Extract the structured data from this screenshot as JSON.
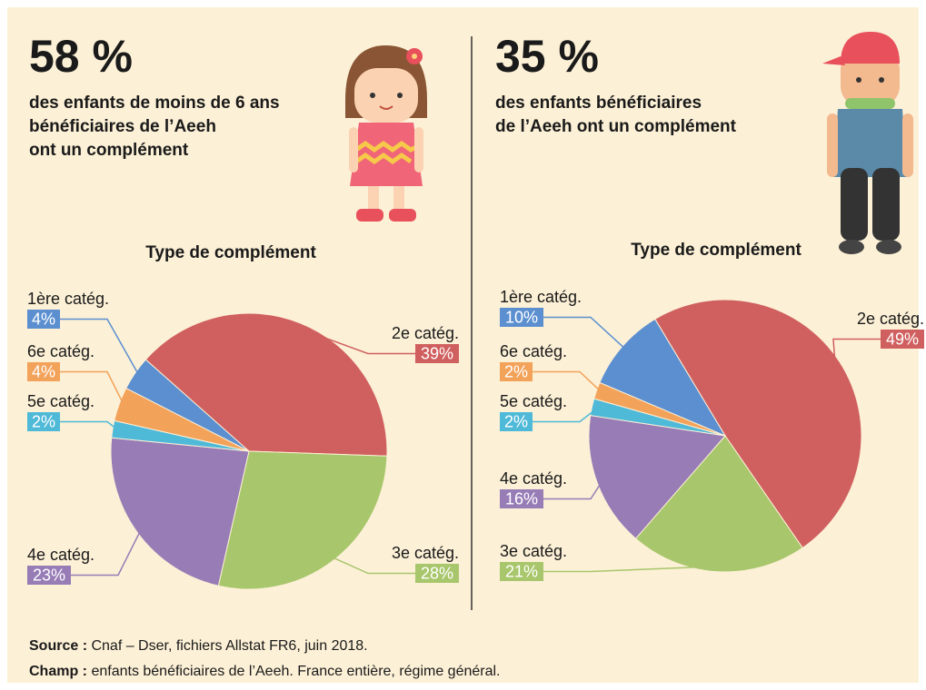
{
  "panels": [
    {
      "stat": "58 %",
      "color": "#e8505b",
      "lines": [
        "des enfants de moins de 6 ans",
        "bénéficiaires de l’Aeeh",
        "ont un complément"
      ]
    },
    {
      "stat": "35 %",
      "color": "#4b7b5f",
      "lines": [
        "des enfants bénéficiaires",
        "de l’Aeeh ont un complément"
      ]
    }
  ],
  "chart_data": [
    {
      "type": "pie",
      "title": "Type de complément",
      "categories": [
        "2e catég.",
        "3e catég.",
        "4e catég.",
        "5e catég.",
        "6e catég.",
        "1ère catég."
      ],
      "values": [
        39,
        28,
        23,
        2,
        4,
        4
      ],
      "value_labels": [
        "39%",
        "28%",
        "23%",
        "2%",
        "4%",
        "4%"
      ],
      "colors": [
        "#d0605f",
        "#a8c66b",
        "#977cb6",
        "#4fb9d8",
        "#f3a25a",
        "#5b8fd0"
      ]
    },
    {
      "type": "pie",
      "title": "Type de complément",
      "categories": [
        "2e catég.",
        "3e catég.",
        "4e catég.",
        "5e catég.",
        "6e catég.",
        "1ère catég."
      ],
      "values": [
        49,
        21,
        16,
        2,
        2,
        10
      ],
      "value_labels": [
        "49%",
        "21%",
        "16%",
        "2%",
        "2%",
        "10%"
      ],
      "colors": [
        "#d0605f",
        "#a8c66b",
        "#977cb6",
        "#4fb9d8",
        "#f3a25a",
        "#5b8fd0"
      ]
    }
  ],
  "source": {
    "label": "Source :",
    "text": "Cnaf – Dser, fichiers Allstat FR6, juin 2018."
  },
  "champ": {
    "label": "Champ :",
    "text": "enfants bénéficiaires de l’Aeeh. France entière, régime général."
  }
}
